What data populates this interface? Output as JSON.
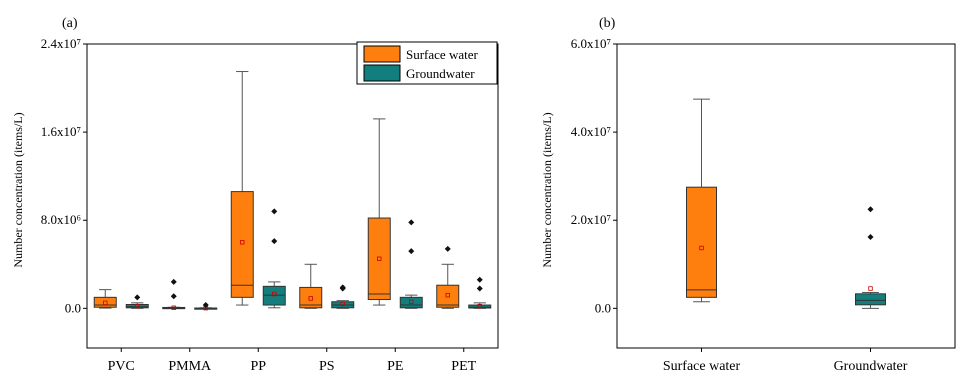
{
  "colors": {
    "surface": "#ff7f0e",
    "ground": "#137e7e",
    "mean": "#cc0000"
  },
  "chart_data": [
    {
      "panel_label": "(a)",
      "type": "box",
      "ylabel": "Number concentration (items/L)",
      "ylim": [
        -3600000,
        24000000
      ],
      "yticks": [
        0,
        8000000,
        16000000,
        24000000
      ],
      "ytick_labels": [
        "0.0",
        "8.0x10⁶",
        "1.6x10⁷",
        "2.4x10⁷"
      ],
      "categories": [
        "PVC",
        "PMMA",
        "PP",
        "PS",
        "PE",
        "PET"
      ],
      "legend": {
        "position": "top-right",
        "entries": [
          "Surface water",
          "Groundwater"
        ]
      },
      "series": [
        {
          "name": "Surface water",
          "boxes": [
            {
              "q1": 100000,
              "median": 300000,
              "q3": 1000000,
              "whisker_low": 20000,
              "whisker_high": 1700000,
              "mean": 500000,
              "outliers": []
            },
            {
              "q1": 10000,
              "median": 30000,
              "q3": 80000,
              "whisker_low": 0,
              "whisker_high": 100000,
              "mean": 50000,
              "outliers": [
                1100000,
                2400000
              ]
            },
            {
              "q1": 1000000,
              "median": 2100000,
              "q3": 10600000,
              "whisker_low": 300000,
              "whisker_high": 21500000,
              "mean": 6000000,
              "outliers": []
            },
            {
              "q1": 50000,
              "median": 300000,
              "q3": 1900000,
              "whisker_low": 0,
              "whisker_high": 4000000,
              "mean": 900000,
              "outliers": []
            },
            {
              "q1": 800000,
              "median": 1300000,
              "q3": 8200000,
              "whisker_low": 300000,
              "whisker_high": 17200000,
              "mean": 4500000,
              "outliers": []
            },
            {
              "q1": 100000,
              "median": 300000,
              "q3": 2100000,
              "whisker_low": 0,
              "whisker_high": 4000000,
              "mean": 1200000,
              "outliers": [
                5400000
              ]
            }
          ]
        },
        {
          "name": "Groundwater",
          "boxes": [
            {
              "q1": 50000,
              "median": 150000,
              "q3": 350000,
              "whisker_low": 0,
              "whisker_high": 500000,
              "mean": 200000,
              "outliers": [
                1000000
              ]
            },
            {
              "q1": 0,
              "median": 10000,
              "q3": 30000,
              "whisker_low": 0,
              "whisker_high": 50000,
              "mean": 20000,
              "outliers": [
                300000
              ]
            },
            {
              "q1": 300000,
              "median": 1200000,
              "q3": 2000000,
              "whisker_low": 50000,
              "whisker_high": 2400000,
              "mean": 1300000,
              "outliers": [
                6100000,
                8800000
              ]
            },
            {
              "q1": 50000,
              "median": 300000,
              "q3": 600000,
              "whisker_low": 0,
              "whisker_high": 700000,
              "mean": 400000,
              "outliers": [
                1800000,
                1900000
              ]
            },
            {
              "q1": 50000,
              "median": 300000,
              "q3": 1000000,
              "whisker_low": 0,
              "whisker_high": 1200000,
              "mean": 600000,
              "outliers": [
                5200000,
                7800000
              ]
            },
            {
              "q1": 30000,
              "median": 100000,
              "q3": 300000,
              "whisker_low": 0,
              "whisker_high": 500000,
              "mean": 200000,
              "outliers": [
                1800000,
                2600000
              ]
            }
          ]
        }
      ]
    },
    {
      "panel_label": "(b)",
      "type": "box",
      "ylabel": "Number concentration (items/L)",
      "ylim": [
        -9000000,
        60000000
      ],
      "yticks": [
        0,
        20000000,
        40000000,
        60000000
      ],
      "ytick_labels": [
        "0.0",
        "2.0x10⁷",
        "4.0x10⁷",
        "6.0x10⁷"
      ],
      "categories": [
        "Surface water",
        "Groundwater"
      ],
      "boxes": [
        {
          "q1": 2500000,
          "median": 4200000,
          "q3": 27500000,
          "whisker_low": 1500000,
          "whisker_high": 47500000,
          "mean": 13700000,
          "outliers": []
        },
        {
          "q1": 800000,
          "median": 1800000,
          "q3": 3300000,
          "whisker_low": 0,
          "whisker_high": 3600000,
          "mean": 4500000,
          "outliers": [
            16200000,
            22500000
          ]
        }
      ]
    }
  ]
}
